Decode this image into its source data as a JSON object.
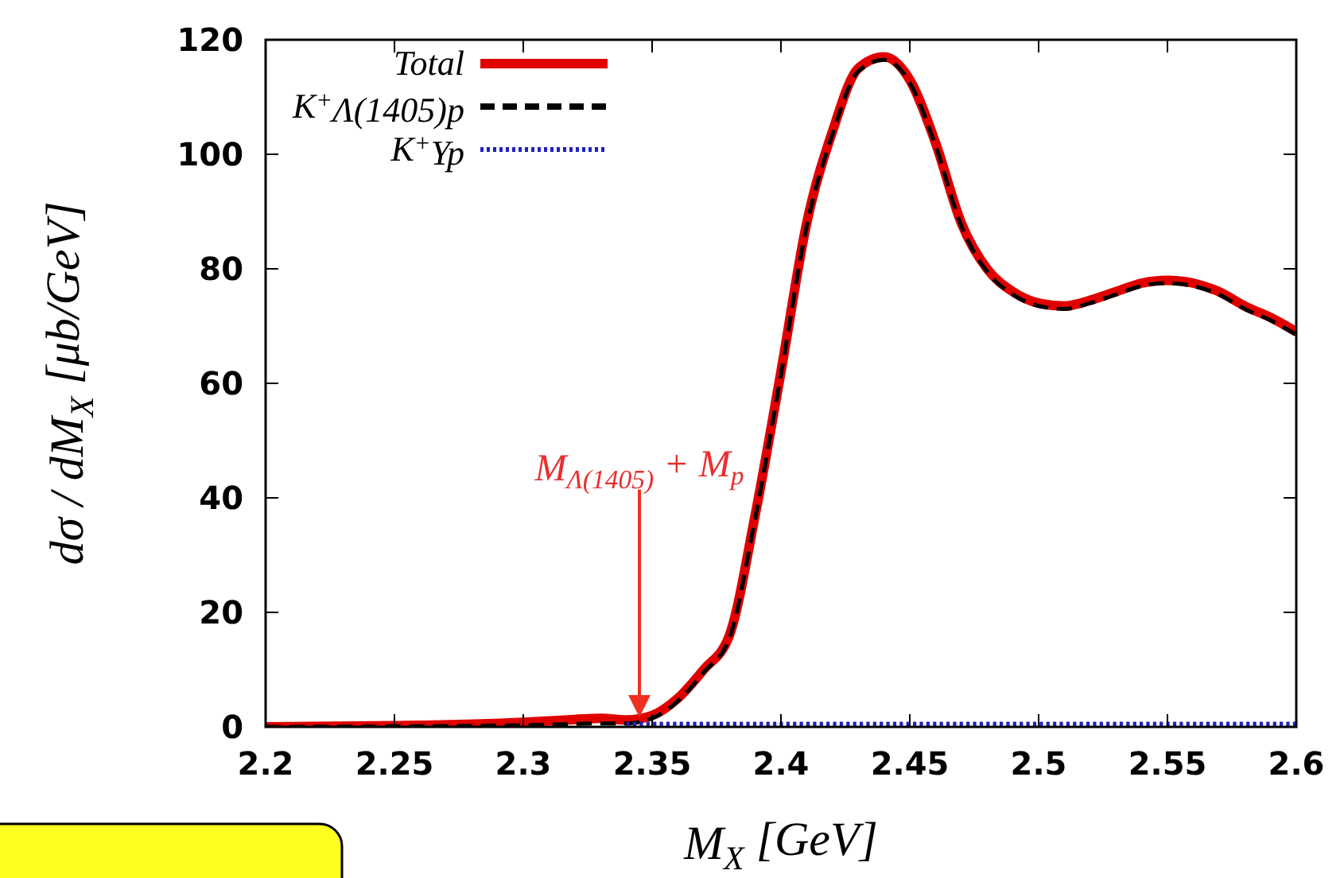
{
  "chart_data": {
    "type": "line",
    "xlabel": "M$_{X}$  [GeV]",
    "ylabel": "dσ / dM$_{X}$  [μb/GeV]",
    "xlim": [
      2.2,
      2.6
    ],
    "xticks": [
      2.2,
      2.25,
      2.3,
      2.35,
      2.4,
      2.45,
      2.5,
      2.55,
      2.6
    ],
    "ylim": [
      0,
      120
    ],
    "yticks": [
      0,
      20,
      40,
      60,
      80,
      100,
      120
    ],
    "x": [
      2.2,
      2.25,
      2.3,
      2.32,
      2.33,
      2.34,
      2.35,
      2.36,
      2.37,
      2.38,
      2.39,
      2.4,
      2.41,
      2.42,
      2.43,
      2.44,
      2.45,
      2.46,
      2.47,
      2.48,
      2.49,
      2.5,
      2.51,
      2.52,
      2.53,
      2.54,
      2.55,
      2.56,
      2.57,
      2.58,
      2.59,
      2.6
    ],
    "series": [
      {
        "name": "Total",
        "color": "#e00000",
        "line_style": "solid",
        "values": [
          0,
          0.2,
          0.8,
          1.3,
          1.5,
          1.2,
          2,
          5,
          10,
          16,
          37,
          62,
          88,
          104,
          115,
          117,
          113,
          102,
          88,
          80,
          76,
          74,
          73.5,
          74.5,
          76,
          77.5,
          78,
          77.5,
          76,
          73.5,
          71.5,
          69
        ]
      },
      {
        "name": "K$^{+}$Λ(1405)p",
        "color": "#000000",
        "line_style": "dashed",
        "values": [
          0,
          0.1,
          0.3,
          0.5,
          0.6,
          0.6,
          1.5,
          4.5,
          9.5,
          15.5,
          36.5,
          61.5,
          87.5,
          103.5,
          114.5,
          116.5,
          112.5,
          101.5,
          87.5,
          79.5,
          75.5,
          73.5,
          73,
          74,
          75.5,
          77,
          77.5,
          77,
          75.5,
          73,
          71,
          68.5
        ]
      },
      {
        "name": "K$^{+}$Yp",
        "color": "#2020c0",
        "line_style": "dotted",
        "x": [
          2.34,
          2.6
        ],
        "values": [
          0.5,
          0.5
        ]
      }
    ],
    "legend": "top left",
    "grid": false,
    "annotations": [
      "M$_{Λ(1405)}$ + M$_{p}$"
    ]
  }
}
